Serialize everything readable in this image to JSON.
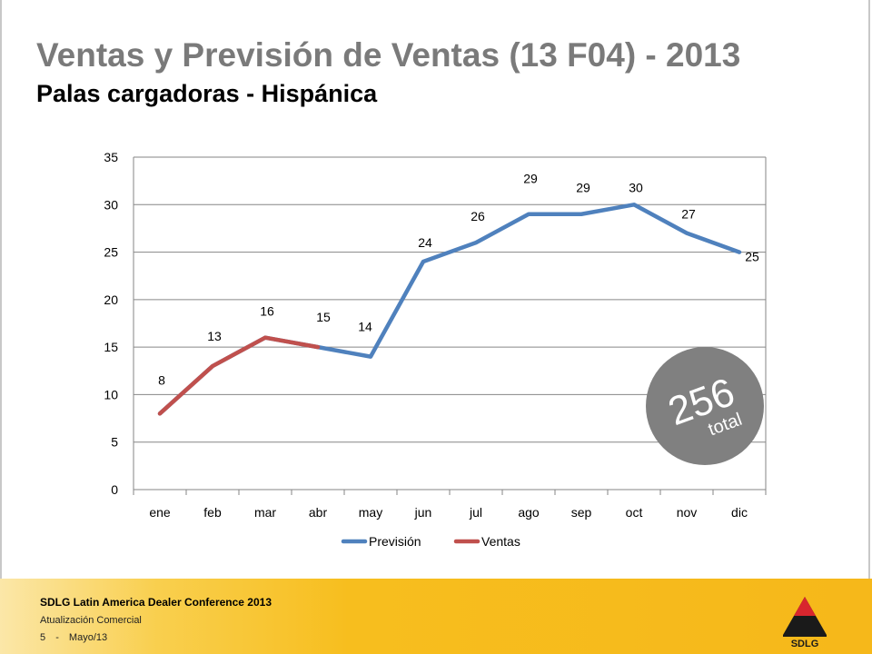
{
  "slide": {
    "title": "Ventas y Previsión de Ventas (13 F04) - 2013",
    "subtitle": "Palas cargadoras - Hispánica"
  },
  "badge": {
    "value": "256",
    "label": "total",
    "color": "#808080"
  },
  "footer": {
    "conference": "SDLG Latin America Dealer Conference 2013",
    "section": "Atualización Comercial",
    "page": "5",
    "separator": "-",
    "date": "Mayo/13",
    "logo_text": "SDLG"
  },
  "chart_data": {
    "type": "line",
    "categories": [
      "ene",
      "feb",
      "mar",
      "abr",
      "may",
      "jun",
      "jul",
      "ago",
      "sep",
      "oct",
      "nov",
      "dic"
    ],
    "series": [
      {
        "name": "Previsión",
        "color": "#4f81bd",
        "values": [
          8,
          13,
          16,
          15,
          14,
          24,
          26,
          29,
          29,
          30,
          27,
          25
        ]
      },
      {
        "name": "Ventas",
        "color": "#c0504d",
        "values": [
          8,
          13,
          16,
          15,
          null,
          null,
          null,
          null,
          null,
          null,
          null,
          null
        ]
      }
    ],
    "data_labels": [
      "8",
      "13",
      "16",
      "15",
      "14",
      "24",
      "26",
      "29",
      "29",
      "30",
      "27",
      "25"
    ],
    "y_ticks": [
      "0",
      "5",
      "10",
      "15",
      "20",
      "25",
      "30",
      "35"
    ],
    "ylim": [
      0,
      35
    ],
    "grid": true,
    "legend_position": "bottom"
  }
}
